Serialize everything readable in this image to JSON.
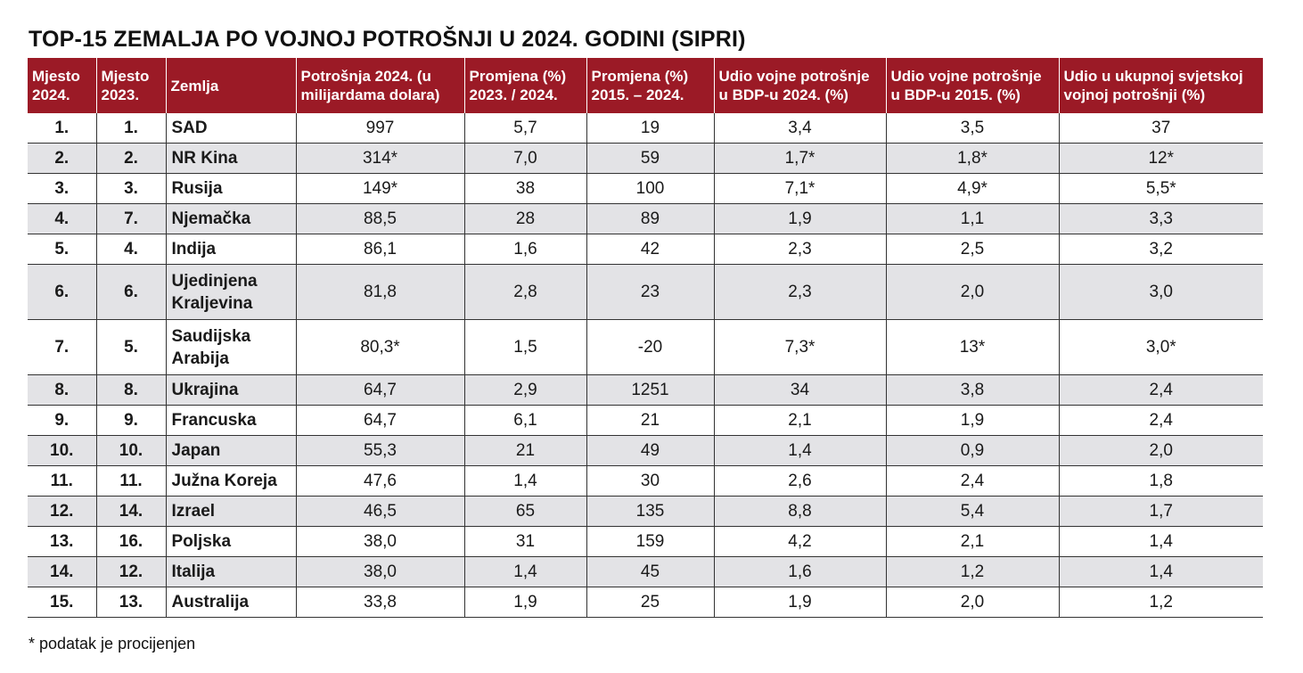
{
  "title": "TOP-15 ZEMALJA PO VOJNOJ POTROŠNJI U 2024. GODINI (SIPRI)",
  "columns": [
    "Mjesto 2024.",
    "Mjesto 2023.",
    "Zemlja",
    "Potrošnja 2024. (u milijardama dolara)",
    "Promjena (%) 2023. / 2024.",
    "Promjena (%) 2015. – 2024.",
    "Udio vojne potrošnje u BDP-u 2024. (%)",
    "Udio vojne potrošnje u BDP-u 2015. (%)",
    "Udio u ukupnoj svjetskoj vojnoj potrošnji (%)"
  ],
  "rows": [
    [
      "1.",
      "1.",
      "SAD",
      "997",
      "5,7",
      "19",
      "3,4",
      "3,5",
      "37"
    ],
    [
      "2.",
      "2.",
      "NR Kina",
      "314*",
      "7,0",
      "59",
      "1,7*",
      "1,8*",
      "12*"
    ],
    [
      "3.",
      "3.",
      "Rusija",
      "149*",
      "38",
      "100",
      "7,1*",
      "4,9*",
      "5,5*"
    ],
    [
      "4.",
      "7.",
      "Njemačka",
      "88,5",
      "28",
      "89",
      "1,9",
      "1,1",
      "3,3"
    ],
    [
      "5.",
      "4.",
      "Indija",
      "86,1",
      "1,6",
      "42",
      "2,3",
      "2,5",
      "3,2"
    ],
    [
      "6.",
      "6.",
      "Ujedinjena Kraljevina",
      "81,8",
      "2,8",
      "23",
      "2,3",
      "2,0",
      "3,0"
    ],
    [
      "7.",
      "5.",
      "Saudijska Arabija",
      "80,3*",
      "1,5",
      "-20",
      "7,3*",
      "13*",
      "3,0*"
    ],
    [
      "8.",
      "8.",
      "Ukrajina",
      "64,7",
      "2,9",
      "1251",
      "34",
      "3,8",
      "2,4"
    ],
    [
      "9.",
      "9.",
      "Francuska",
      "64,7",
      "6,1",
      "21",
      "2,1",
      "1,9",
      "2,4"
    ],
    [
      "10.",
      "10.",
      "Japan",
      "55,3",
      "21",
      "49",
      "1,4",
      "0,9",
      "2,0"
    ],
    [
      "11.",
      "11.",
      "Južna Koreja",
      "47,6",
      "1,4",
      "30",
      "2,6",
      "2,4",
      "1,8"
    ],
    [
      "12.",
      "14.",
      "Izrael",
      "46,5",
      "65",
      "135",
      "8,8",
      "5,4",
      "1,7"
    ],
    [
      "13.",
      "16.",
      "Poljska",
      "38,0",
      "31",
      "159",
      "4,2",
      "2,1",
      "1,4"
    ],
    [
      "14.",
      "12.",
      "Italija",
      "38,0",
      "1,4",
      "45",
      "1,6",
      "1,2",
      "1,4"
    ],
    [
      "15.",
      "13.",
      "Australija",
      "33,8",
      "1,9",
      "25",
      "1,9",
      "2,0",
      "1,2"
    ]
  ],
  "footnote": "* podatak je procijenjen",
  "colors": {
    "header_bg": "#9b1a26",
    "stripe_bg": "#e3e3e6"
  }
}
